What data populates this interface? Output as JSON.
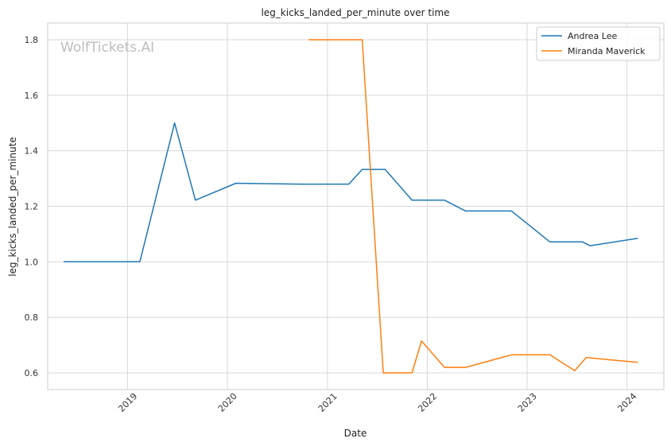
{
  "chart_data": {
    "type": "line",
    "title": "leg_kicks_landed_per_minute over time",
    "xlabel": "Date",
    "ylabel": "leg_kicks_landed_per_minute",
    "watermark": "WolfTickets.AI",
    "x_ticks": [
      "2019",
      "2020",
      "2021",
      "2022",
      "2023",
      "2024"
    ],
    "y_ticks": [
      "0.6",
      "0.8",
      "1.0",
      "1.2",
      "1.4",
      "1.6",
      "1.8"
    ],
    "xlim": [
      "2018-03-15",
      "2024-05-15"
    ],
    "ylim": [
      0.54,
      1.86
    ],
    "grid": true,
    "legend_position": "top-right",
    "series": [
      {
        "name": "Andrea Lee",
        "color": "#1f77b4",
        "points": [
          {
            "x": "2018-05-12",
            "y": 1.0
          },
          {
            "x": "2019-02-15",
            "y": 1.0
          },
          {
            "x": "2019-06-22",
            "y": 1.5
          },
          {
            "x": "2019-09-06",
            "y": 1.222
          },
          {
            "x": "2020-02-01",
            "y": 1.283
          },
          {
            "x": "2020-09-27",
            "y": 1.28
          },
          {
            "x": "2021-03-20",
            "y": 1.28
          },
          {
            "x": "2021-05-08",
            "y": 1.333
          },
          {
            "x": "2021-07-31",
            "y": 1.333
          },
          {
            "x": "2021-11-06",
            "y": 1.222
          },
          {
            "x": "2022-03-05",
            "y": 1.222
          },
          {
            "x": "2022-05-21",
            "y": 1.183
          },
          {
            "x": "2022-11-05",
            "y": 1.183
          },
          {
            "x": "2023-03-25",
            "y": 1.072
          },
          {
            "x": "2023-07-22",
            "y": 1.072
          },
          {
            "x": "2023-08-19",
            "y": 1.058
          },
          {
            "x": "2024-02-10",
            "y": 1.085
          }
        ]
      },
      {
        "name": "Miranda Maverick",
        "color": "#ff7f0e",
        "points": [
          {
            "x": "2020-10-24",
            "y": 1.8
          },
          {
            "x": "2021-05-08",
            "y": 1.8
          },
          {
            "x": "2021-07-24",
            "y": 0.6
          },
          {
            "x": "2021-11-06",
            "y": 0.6
          },
          {
            "x": "2021-12-11",
            "y": 0.715
          },
          {
            "x": "2022-03-05",
            "y": 0.62
          },
          {
            "x": "2022-05-21",
            "y": 0.62
          },
          {
            "x": "2022-11-05",
            "y": 0.665
          },
          {
            "x": "2023-03-25",
            "y": 0.665
          },
          {
            "x": "2023-06-24",
            "y": 0.608
          },
          {
            "x": "2023-08-05",
            "y": 0.655
          },
          {
            "x": "2024-02-10",
            "y": 0.638
          }
        ]
      }
    ]
  }
}
